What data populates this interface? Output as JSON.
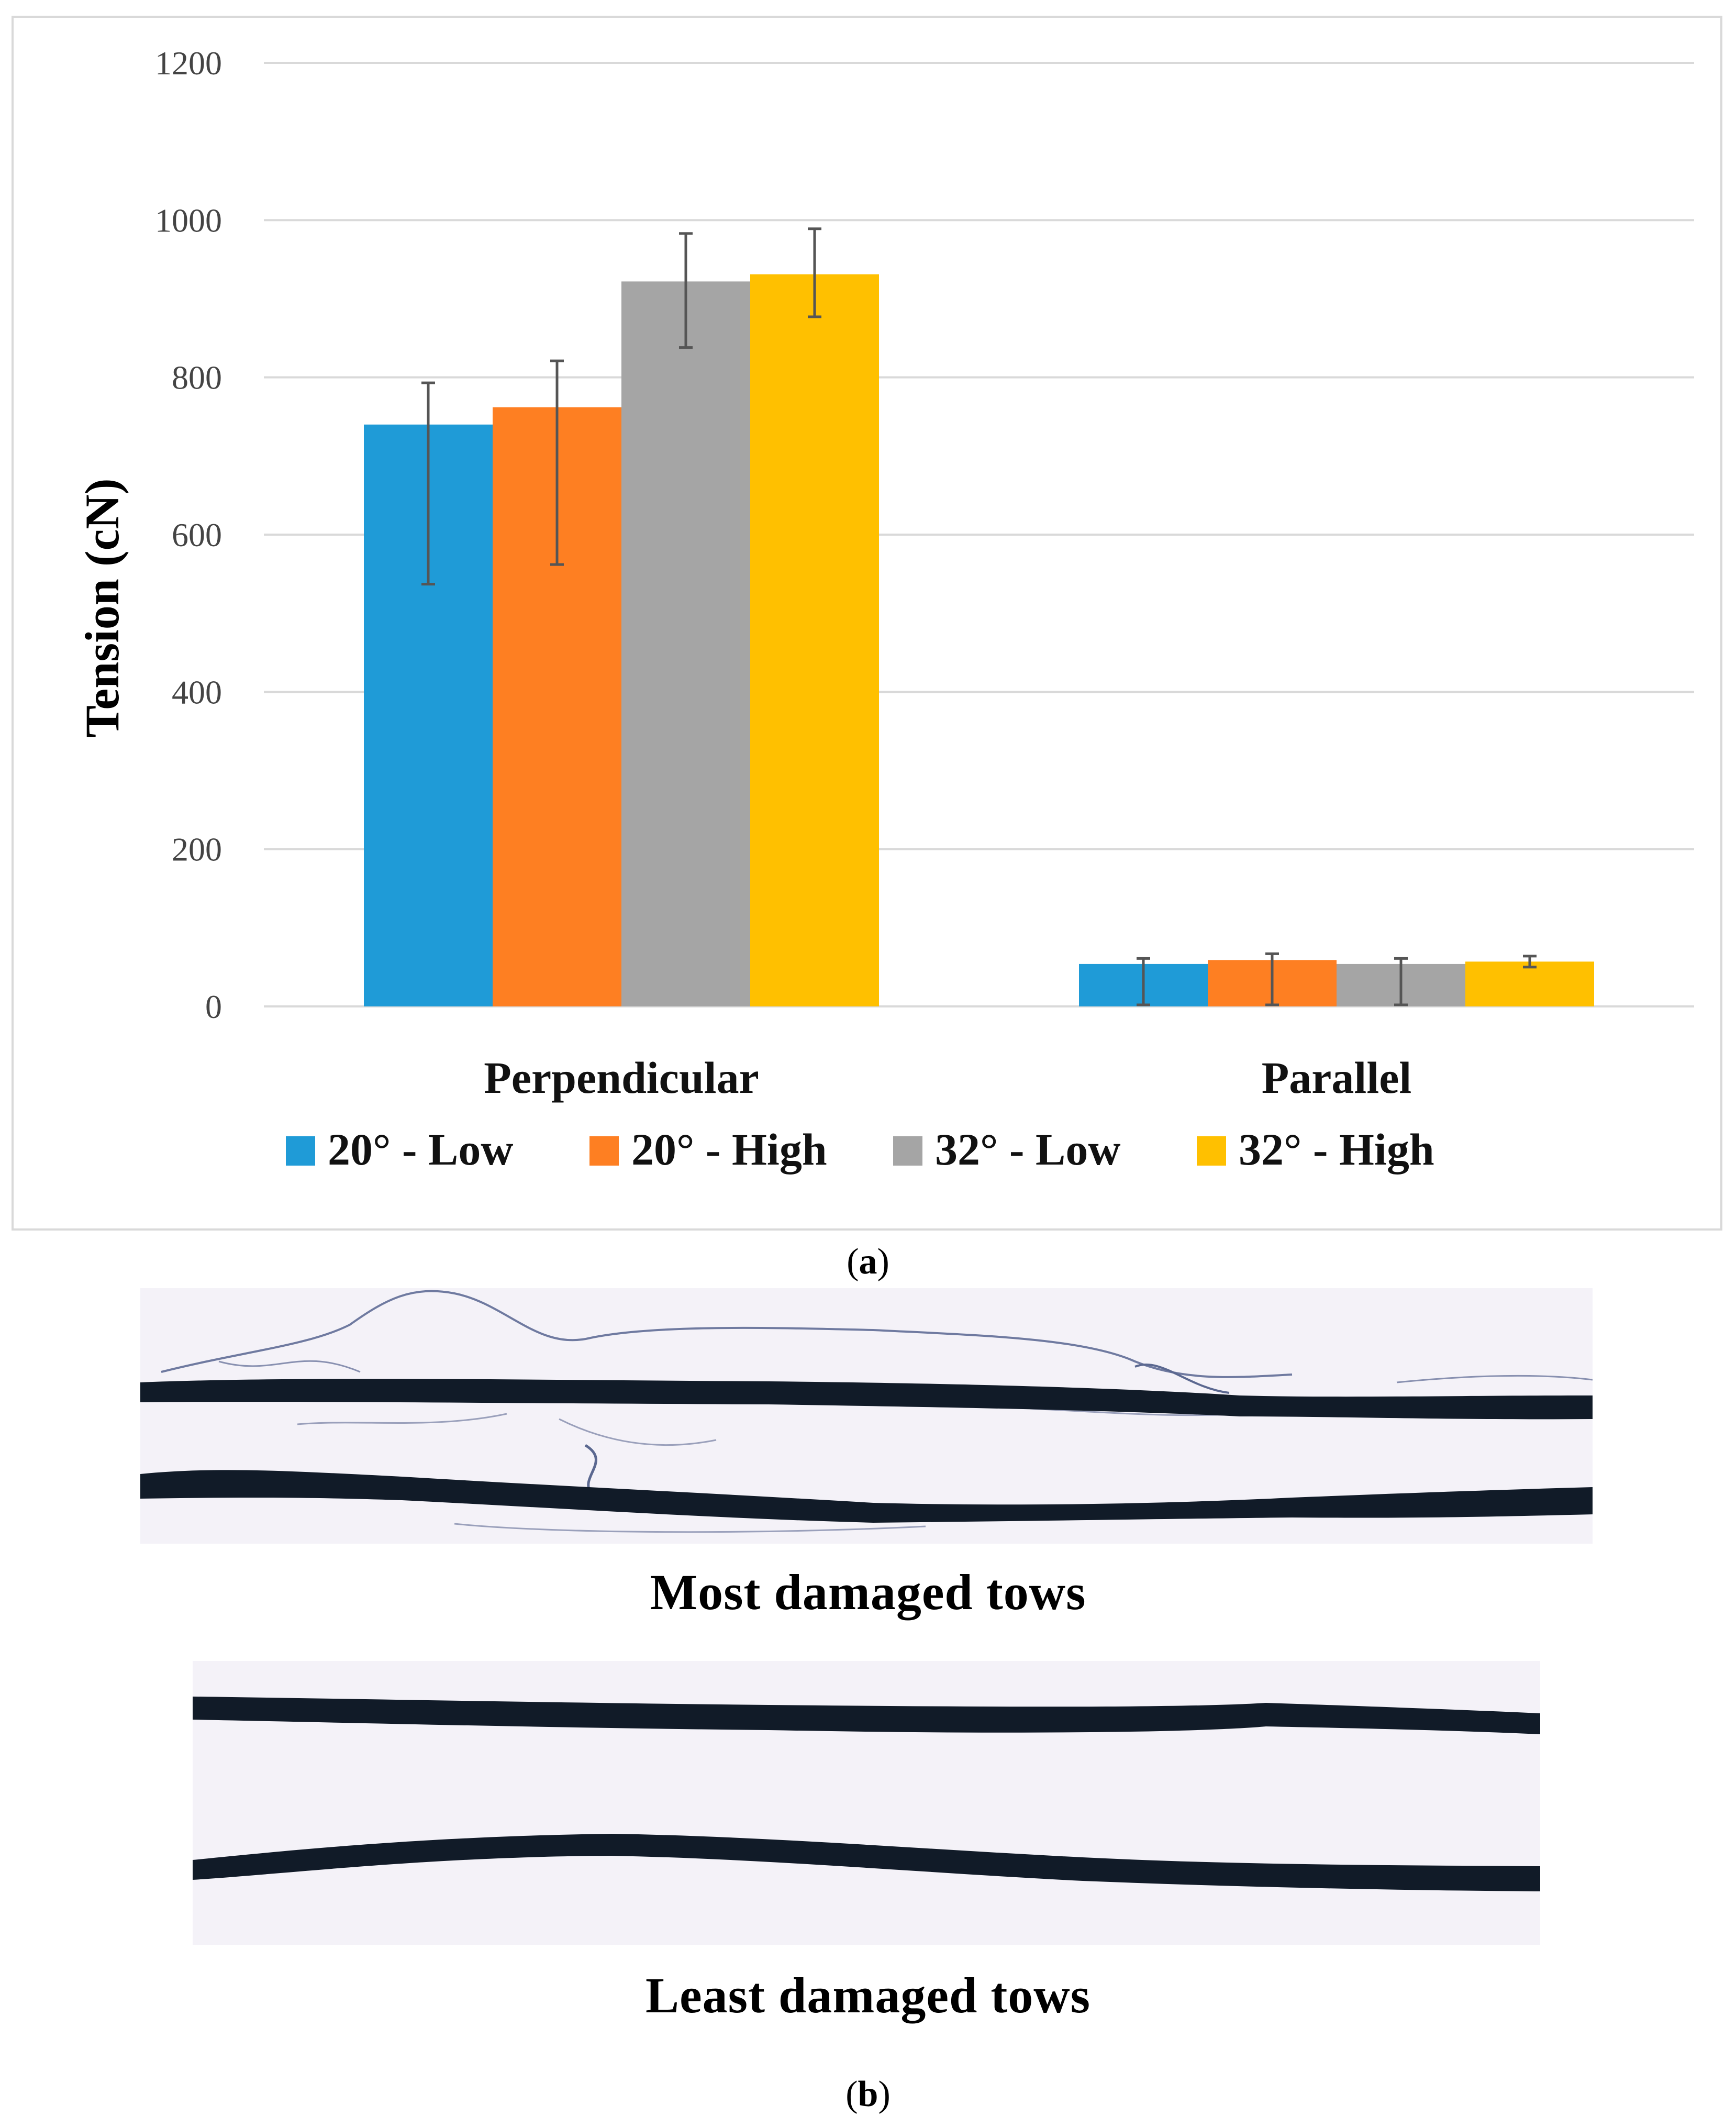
{
  "chart_data": {
    "type": "bar",
    "ylabel": "Tension (cN)",
    "xlabel": "",
    "ylim": [
      0,
      1200
    ],
    "yticks": [
      0,
      200,
      400,
      600,
      800,
      1000,
      1200
    ],
    "grid": true,
    "legend_position": "bottom",
    "categories": [
      "Perpendicular",
      "Parallel"
    ],
    "series": [
      {
        "name": "20° - Low",
        "color": "#1f9bd7",
        "values": [
          740,
          54
        ],
        "error_low": [
          537,
          2
        ],
        "error_high": [
          793,
          61
        ]
      },
      {
        "name": "20° - High",
        "color": "#fe7f22",
        "values": [
          762,
          59
        ],
        "error_low": [
          562,
          2
        ],
        "error_high": [
          821,
          67
        ]
      },
      {
        "name": "32° - Low",
        "color": "#a5a5a5",
        "values": [
          922,
          54
        ],
        "error_low": [
          838,
          2
        ],
        "error_high": [
          983,
          61
        ]
      },
      {
        "name": "32° - High",
        "color": "#ffc000",
        "values": [
          931,
          57
        ],
        "error_low": [
          877,
          50
        ],
        "error_high": [
          989,
          64
        ]
      }
    ]
  },
  "captions": {
    "a_prefix": "(",
    "a_letter": "a",
    "a_suffix": ")",
    "b_prefix": "(",
    "b_letter": "b",
    "b_suffix": ")"
  },
  "photos": {
    "top_label": "Most damaged tows",
    "bottom_label": "Least damaged tows"
  }
}
